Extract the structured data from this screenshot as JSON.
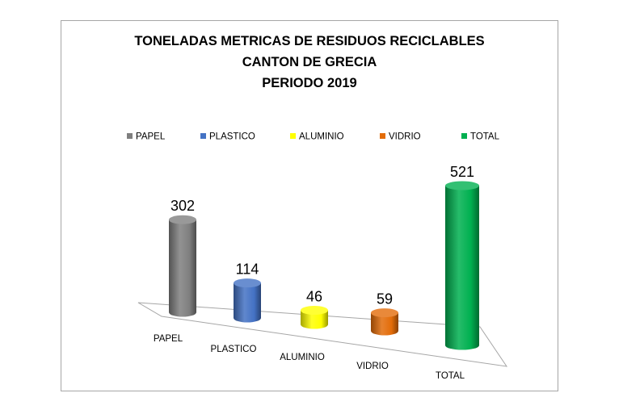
{
  "chart_data": {
    "type": "bar",
    "title_lines": [
      "TONELADAS METRICAS DE RESIDUOS RECICLABLES",
      "CANTON DE GRECIA",
      "PERIODO 2019"
    ],
    "categories": [
      "PAPEL",
      "PLASTICO",
      "ALUMINIO",
      "VIDRIO",
      "TOTAL"
    ],
    "values": [
      302,
      114,
      46,
      59,
      521
    ],
    "legend": [
      "PAPEL",
      "PLASTICO",
      "ALUMINIO",
      "VIDRIO",
      "TOTAL"
    ],
    "legend_position": "top",
    "colors": [
      "#7f7f7f",
      "#4472c4",
      "#ffff00",
      "#e36c09",
      "#00b050"
    ],
    "ylim": [
      0,
      521
    ],
    "grid": false,
    "style": "3d-cylinder"
  }
}
